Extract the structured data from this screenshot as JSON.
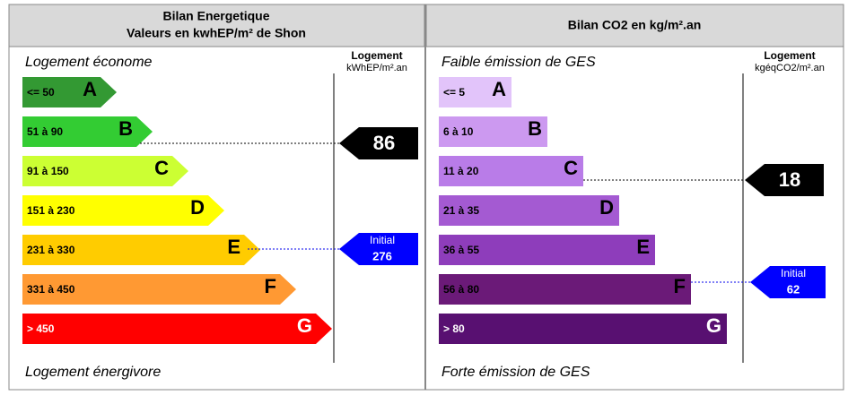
{
  "left": {
    "title_line1": "Bilan Energetique",
    "title_line2": "Valeurs en kwhEP/m² de Shon",
    "top_label": "Logement économe",
    "bottom_label": "Logement énergivore",
    "column_header": "Logement",
    "column_unit": "kWhEP/m².an",
    "classes": [
      {
        "range": "<= 50",
        "letter": "A"
      },
      {
        "range": "51 à 90",
        "letter": "B"
      },
      {
        "range": "91 à 150",
        "letter": "C"
      },
      {
        "range": "151 à 230",
        "letter": "D"
      },
      {
        "range": "231 à 330",
        "letter": "E"
      },
      {
        "range": "331 à 450",
        "letter": "F"
      },
      {
        "range": "> 450",
        "letter": "G"
      }
    ],
    "current": {
      "value": 86
    },
    "initial": {
      "label": "Initial",
      "value": 276
    }
  },
  "right": {
    "title_line1": "Bilan CO2 en kg/m².an",
    "top_label": "Faible émission de GES",
    "bottom_label": "Forte émission de GES",
    "column_header": "Logement",
    "column_unit": "kgéqCO2/m².an",
    "classes": [
      {
        "range": "<= 5",
        "letter": "A"
      },
      {
        "range": "6 à 10",
        "letter": "B"
      },
      {
        "range": "11 à 20",
        "letter": "C"
      },
      {
        "range": "21 à 35",
        "letter": "D"
      },
      {
        "range": "36 à 55",
        "letter": "E"
      },
      {
        "range": "56 à 80",
        "letter": "F"
      },
      {
        "range": "> 80",
        "letter": "G"
      }
    ],
    "current": {
      "value": 18
    },
    "initial": {
      "label": "Initial",
      "value": 62
    }
  }
}
